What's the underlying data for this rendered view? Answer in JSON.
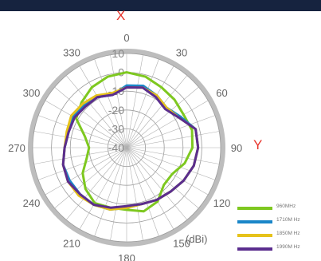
{
  "chart_data": {
    "type": "polar-line",
    "axis_labels": {
      "x": "X",
      "y": "Y"
    },
    "unit": "(dBi)",
    "angle_ticks": [
      "0",
      "30",
      "60",
      "90",
      "120",
      "150",
      "180",
      "210",
      "240",
      "270",
      "300",
      "330"
    ],
    "radial_ticks": [
      "10",
      "0",
      "-10",
      "-20",
      "-30",
      "-40"
    ],
    "radial_range": [
      -40,
      10
    ],
    "grid": true,
    "legend_position": "bottom-right",
    "angles": [
      0,
      15,
      30,
      45,
      60,
      75,
      90,
      105,
      120,
      135,
      150,
      165,
      180,
      195,
      210,
      225,
      240,
      255,
      270,
      285,
      300,
      315,
      330,
      345
    ],
    "series": [
      {
        "name": "960MHz",
        "color": "#7ec820",
        "values": [
          0,
          -1,
          -3,
          -4,
          -5,
          -4,
          -5,
          -8,
          -12,
          -12,
          -7,
          -5,
          -7,
          -7,
          -6,
          -9,
          -13,
          -18,
          -20,
          -17,
          -9,
          -6,
          -3,
          -1
        ]
      },
      {
        "name": "1710MHz",
        "color": "#1a86c8",
        "values": [
          -7,
          -6,
          -8,
          -10,
          -7,
          -2,
          -2,
          -3,
          -5,
          -7,
          -8,
          -9,
          -8,
          -6,
          -5,
          -5,
          -5,
          -5,
          -7,
          -8,
          -7,
          -8,
          -9,
          -11
        ]
      },
      {
        "name": "1850MHz",
        "color": "#e6c21a",
        "values": [
          -8,
          -7,
          -8,
          -10,
          -8,
          -2,
          -2,
          -3,
          -5,
          -7,
          -8,
          -9,
          -8,
          -6,
          -5,
          -4,
          -4,
          -5,
          -7,
          -7,
          -6,
          -7,
          -8,
          -10
        ]
      },
      {
        "name": "1990MHz",
        "color": "#5b2d8e",
        "values": [
          -8,
          -7,
          -9,
          -11,
          -8,
          -2,
          -2,
          -3,
          -5,
          -7,
          -8,
          -9,
          -9,
          -7,
          -5,
          -5,
          -4,
          -5,
          -7,
          -8,
          -8,
          -9,
          -9,
          -11
        ]
      }
    ]
  },
  "legend": [
    {
      "label": "960MHz"
    },
    {
      "label": "1710M Hz"
    },
    {
      "label": "1850M Hz"
    },
    {
      "label": "1990M Hz"
    }
  ]
}
